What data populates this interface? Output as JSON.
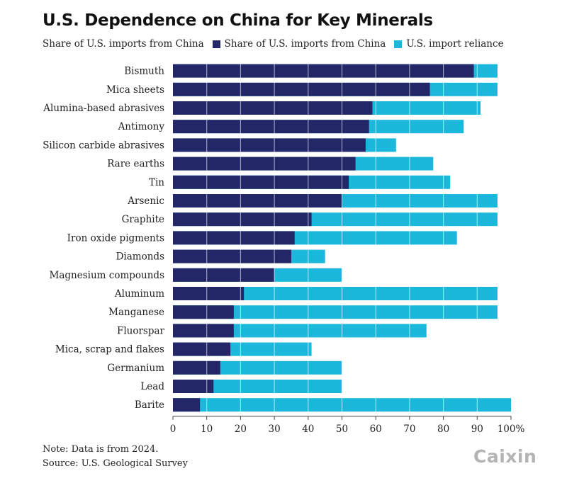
{
  "title": "U.S. Dependence on China for Key Minerals",
  "legend": {
    "lead_label": "Share of U.S. imports from China",
    "items": [
      {
        "label": "Share of U.S. imports from China",
        "color": "#232767"
      },
      {
        "label": "U.S. import reliance",
        "color": "#1bb8dc"
      }
    ]
  },
  "note": {
    "line1": "Note: Data is from 2024.",
    "line2": "Source: U.S. Geological Survey"
  },
  "logo": "Caixin",
  "chart_data": {
    "type": "bar",
    "orientation": "horizontal",
    "categories": [
      "Bismuth",
      "Mica sheets",
      "Alumina-based abrasives",
      "Antimony",
      "Silicon carbide abrasives",
      "Rare earths",
      "Tin",
      "Arsenic",
      "Graphite",
      "Iron oxide pigments",
      "Diamonds",
      "Magnesium compounds",
      "Aluminum",
      "Manganese",
      "Fluorspar",
      "Mica, scrap and flakes",
      "Germanium",
      "Lead",
      "Barite"
    ],
    "series": [
      {
        "name": "Share of U.S. imports from China",
        "color": "#232767",
        "values": [
          89,
          76,
          59,
          58,
          57,
          54,
          52,
          50,
          41,
          36,
          35,
          30,
          21,
          18,
          18,
          17,
          14,
          12,
          8
        ]
      },
      {
        "name": "U.S. import reliance",
        "color": "#1bb8dc",
        "values": [
          96,
          96,
          91,
          86,
          66,
          77,
          82,
          96,
          96,
          84,
          45,
          50,
          96,
          96,
          75,
          41,
          50,
          50,
          100
        ]
      }
    ],
    "xlim": [
      0,
      100
    ],
    "xticks": [
      "0",
      "10",
      "20",
      "30",
      "40",
      "50",
      "60",
      "70",
      "80",
      "90",
      "100%"
    ],
    "grid": true
  }
}
